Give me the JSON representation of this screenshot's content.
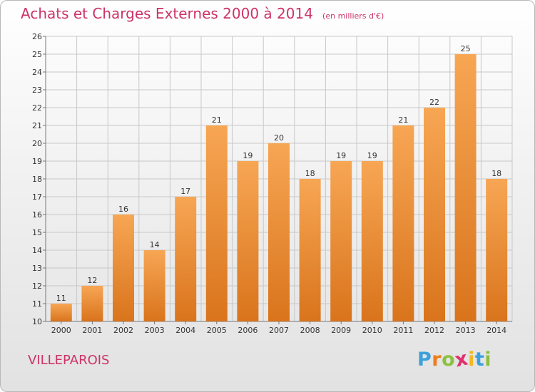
{
  "header": {
    "title": "Achats et Charges Externes 2000 à 2014",
    "unit": "(en milliers d'€)"
  },
  "footer": {
    "commune": "VILLEPAROIS",
    "logo_letters": [
      "P",
      "r",
      "o",
      "x",
      "i",
      "t",
      "i"
    ],
    "logo_colors": [
      "#3ca0dc",
      "#ee7d1e",
      "#8cc040",
      "#e0306e",
      "#f3b81e",
      "#3ca0dc",
      "#8cc040"
    ]
  },
  "colors": {
    "bar_top": "#f7a654",
    "bar_bottom": "#d9741c",
    "title": "#cc3366",
    "grid": "#c8c8c8"
  },
  "chart_data": {
    "type": "bar",
    "title": "Achats et Charges Externes 2000 à 2014",
    "subtitle": "(en milliers d'€)",
    "xlabel": "",
    "ylabel": "",
    "categories": [
      "2000",
      "2001",
      "2002",
      "2003",
      "2004",
      "2005",
      "2006",
      "2007",
      "2008",
      "2009",
      "2010",
      "2011",
      "2012",
      "2013",
      "2014"
    ],
    "values": [
      11,
      12,
      16,
      14,
      17,
      21,
      19,
      20,
      18,
      19,
      19,
      21,
      22,
      25,
      18
    ],
    "ylim": [
      10,
      26
    ],
    "yticks": [
      10,
      11,
      12,
      13,
      14,
      15,
      16,
      17,
      18,
      19,
      20,
      21,
      22,
      23,
      24,
      25,
      26
    ],
    "grid": true,
    "data_labels": true
  }
}
